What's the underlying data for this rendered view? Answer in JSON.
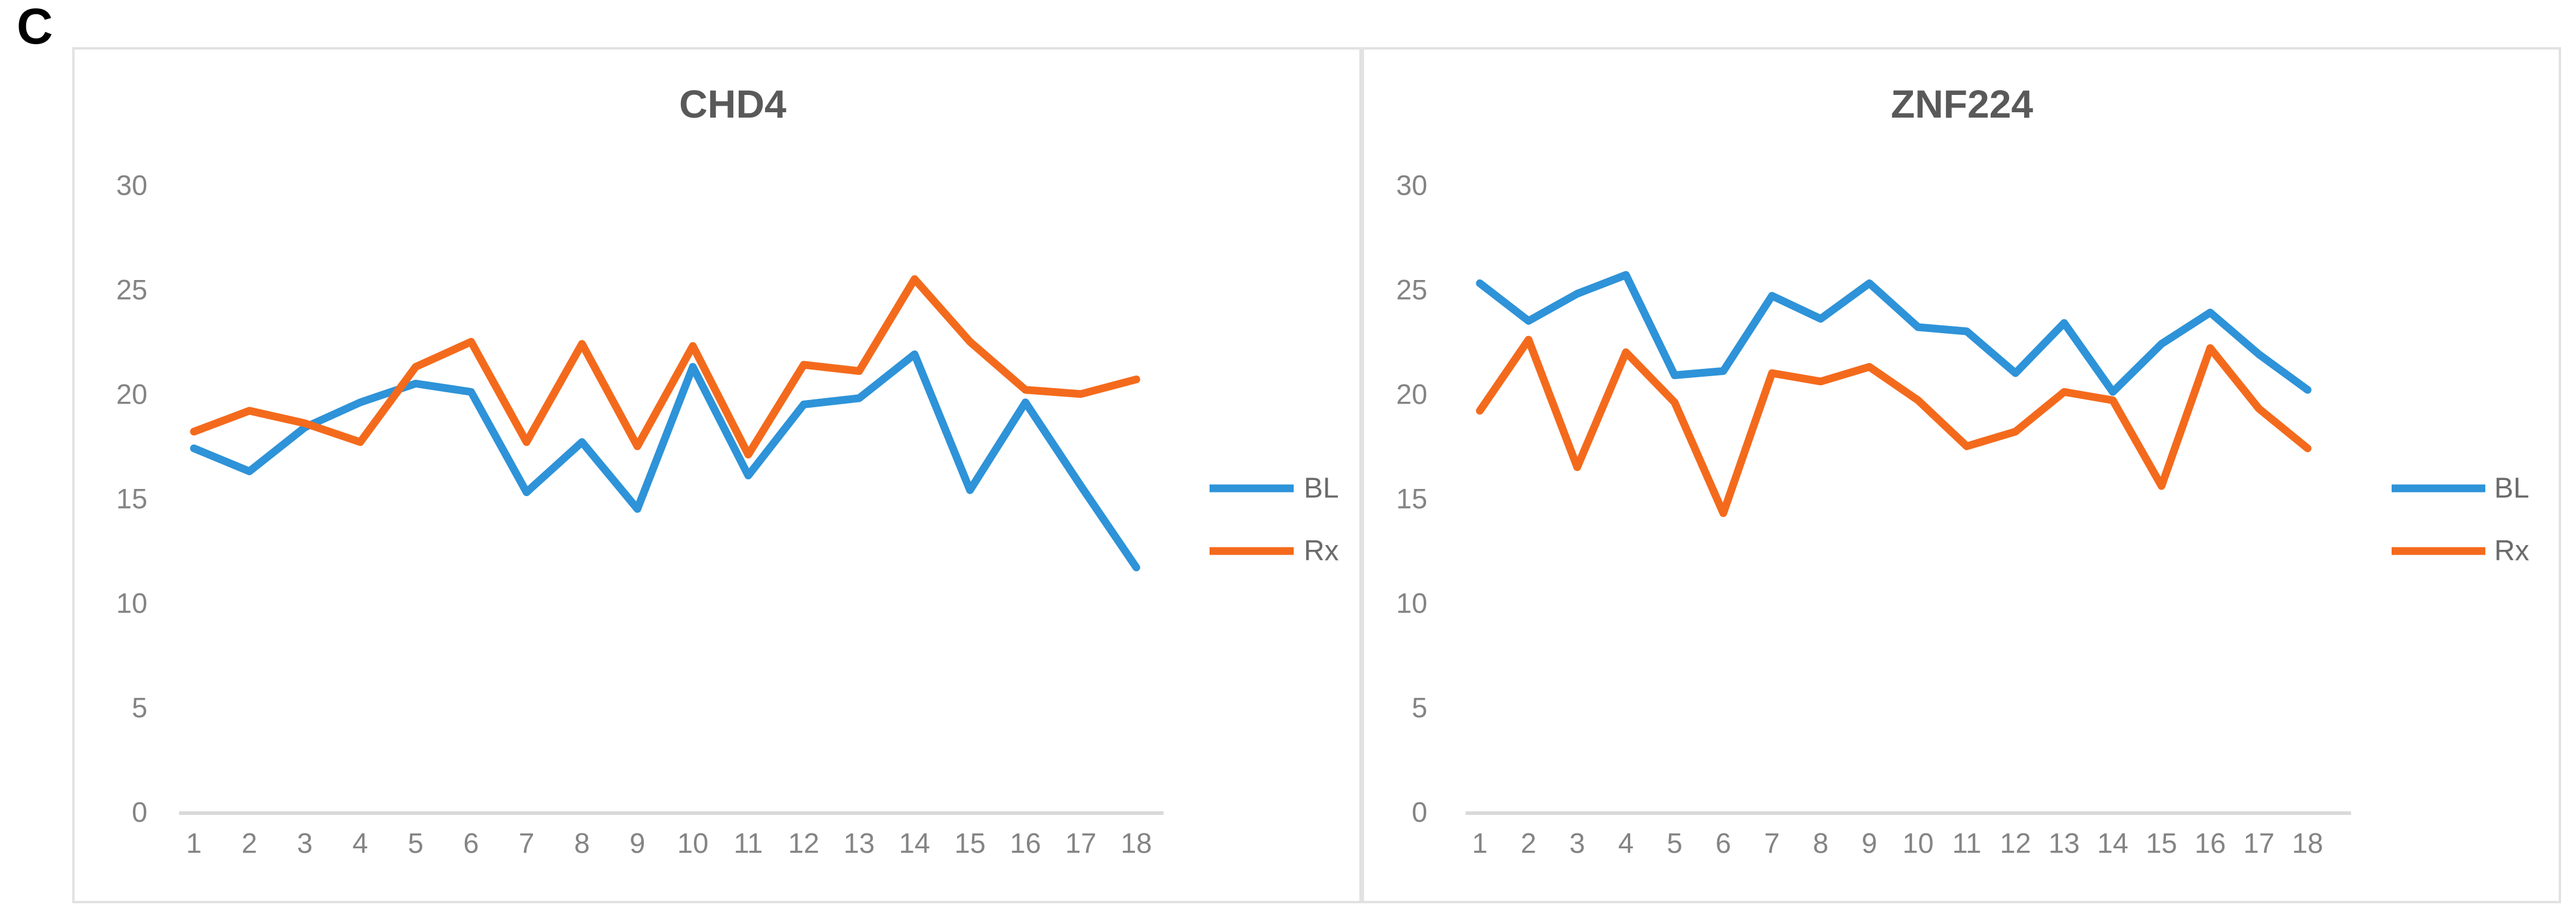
{
  "panel_label": "C",
  "colors": {
    "bl_line": "#2E93D8",
    "rx_line": "#F46A1C",
    "axis_line": "#D9D9D9",
    "tick_text": "#848484",
    "title_text": "#595959",
    "legend_text": "#6B6B6B",
    "panel_border": "#E2E2E2"
  },
  "chart_data": [
    {
      "type": "line",
      "title": "CHD4",
      "xlabel": "",
      "ylabel": "",
      "grid": false,
      "legend_position": "right",
      "ylim": [
        0,
        30
      ],
      "yticks": [
        0,
        5,
        10,
        15,
        20,
        25,
        30
      ],
      "categories": [
        "1",
        "2",
        "3",
        "4",
        "5",
        "6",
        "7",
        "8",
        "9",
        "10",
        "11",
        "12",
        "13",
        "14",
        "15",
        "16",
        "17",
        "18"
      ],
      "series": [
        {
          "name": "BL",
          "color": "#2E93D8",
          "values": [
            17.4,
            16.3,
            18.4,
            19.6,
            20.5,
            20.1,
            15.3,
            17.7,
            14.5,
            21.3,
            16.1,
            19.5,
            19.8,
            21.9,
            15.4,
            19.6,
            15.6,
            11.7
          ]
        },
        {
          "name": "Rx",
          "color": "#F46A1C",
          "values": [
            18.2,
            19.2,
            18.6,
            17.7,
            21.3,
            22.5,
            17.7,
            22.4,
            17.5,
            22.3,
            17.1,
            21.4,
            21.1,
            25.5,
            22.5,
            20.2,
            20.0,
            20.7
          ]
        }
      ]
    },
    {
      "type": "line",
      "title": "ZNF224",
      "xlabel": "",
      "ylabel": "",
      "grid": false,
      "legend_position": "right",
      "ylim": [
        0,
        30
      ],
      "yticks": [
        0,
        5,
        10,
        15,
        20,
        25,
        30
      ],
      "categories": [
        "1",
        "2",
        "3",
        "4",
        "5",
        "6",
        "7",
        "8",
        "9",
        "10",
        "11",
        "12",
        "13",
        "14",
        "15",
        "16",
        "17",
        "18"
      ],
      "series": [
        {
          "name": "BL",
          "color": "#2E93D8",
          "values": [
            25.3,
            23.5,
            24.8,
            25.7,
            20.9,
            21.1,
            24.7,
            23.6,
            25.3,
            23.2,
            23.0,
            21.0,
            23.4,
            20.1,
            22.4,
            23.9,
            21.9,
            20.2
          ]
        },
        {
          "name": "Rx",
          "color": "#F46A1C",
          "values": [
            19.2,
            22.6,
            16.5,
            22.0,
            19.6,
            14.3,
            21.0,
            20.6,
            21.3,
            19.7,
            17.5,
            18.2,
            20.1,
            19.7,
            15.6,
            22.2,
            19.3,
            17.4
          ]
        }
      ]
    }
  ]
}
